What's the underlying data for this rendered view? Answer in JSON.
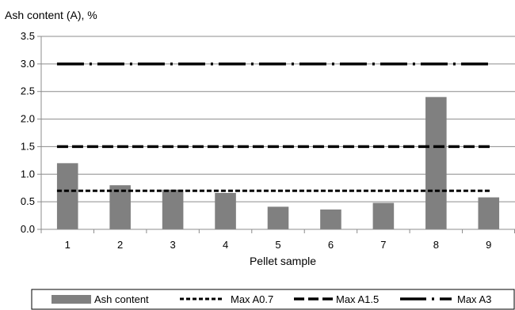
{
  "chart_data": {
    "type": "bar",
    "ylabel": "Ash content (A), %",
    "xlabel": "Pellet sample",
    "categories": [
      "1",
      "2",
      "3",
      "4",
      "5",
      "6",
      "7",
      "8",
      "9"
    ],
    "series": [
      {
        "name": "Ash content",
        "kind": "bar",
        "color": "#808080",
        "values": [
          1.2,
          0.8,
          0.72,
          0.66,
          0.41,
          0.36,
          0.48,
          2.4,
          0.58
        ]
      }
    ],
    "limits": [
      {
        "name": "Max A0.7",
        "value": 0.7,
        "dash": "short-dash",
        "color": "#000000"
      },
      {
        "name": "Max A1.5",
        "value": 1.5,
        "dash": "long-dash",
        "color": "#000000"
      },
      {
        "name": "Max A3",
        "value": 3.0,
        "dash": "long-dash-dot",
        "color": "#000000"
      }
    ],
    "ylim": [
      0,
      3.5
    ],
    "yticks": [
      "0.0",
      "0.5",
      "1.0",
      "1.5",
      "2.0",
      "2.5",
      "3.0",
      "3.5"
    ],
    "grid": "horizontal-major",
    "legend": "bottom"
  }
}
